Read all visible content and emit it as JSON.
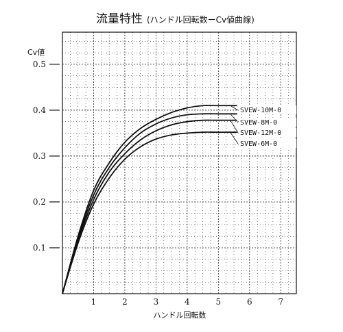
{
  "chart_data": {
    "type": "line",
    "title": "流量特性",
    "subtitle": "(ハンドル回転数ーCv値曲線)",
    "xlabel": "ハンドル回転数",
    "ylabel": "Cv値",
    "xlim": [
      0,
      7.5
    ],
    "ylim": [
      0,
      0.57
    ],
    "x_ticks": [
      "1",
      "2",
      "3",
      "4",
      "5",
      "6",
      "7"
    ],
    "y_ticks": [
      "0.1",
      "0.2",
      "0.3",
      "0.4",
      "0.5"
    ],
    "grid": true,
    "series": [
      {
        "name": "SVEW-10M-0",
        "x": [
          0,
          0.5,
          1,
          1.5,
          2,
          2.5,
          3,
          3.5,
          4,
          4.5,
          5,
          5.6
        ],
        "y": [
          0,
          0.125,
          0.225,
          0.285,
          0.33,
          0.36,
          0.38,
          0.395,
          0.405,
          0.41,
          0.41,
          0.41
        ]
      },
      {
        "name": "SVEW-8M-0",
        "x": [
          0,
          0.5,
          1,
          1.5,
          2,
          2.5,
          3,
          3.5,
          4,
          4.5,
          5,
          5.6
        ],
        "y": [
          0,
          0.12,
          0.215,
          0.275,
          0.318,
          0.35,
          0.37,
          0.383,
          0.39,
          0.392,
          0.392,
          0.392
        ]
      },
      {
        "name": "SVEW-12M-0",
        "x": [
          0,
          0.5,
          1,
          1.5,
          2,
          2.5,
          3,
          3.5,
          4,
          4.5,
          5,
          5.6
        ],
        "y": [
          0,
          0.115,
          0.205,
          0.265,
          0.305,
          0.335,
          0.355,
          0.368,
          0.375,
          0.378,
          0.378,
          0.378
        ]
      },
      {
        "name": "SVEW-6M-0",
        "x": [
          0,
          0.5,
          1,
          1.5,
          2,
          2.5,
          3,
          3.5,
          4,
          4.5,
          5,
          5.6
        ],
        "y": [
          0,
          0.11,
          0.195,
          0.252,
          0.293,
          0.32,
          0.337,
          0.346,
          0.35,
          0.352,
          0.352,
          0.352
        ]
      }
    ]
  }
}
